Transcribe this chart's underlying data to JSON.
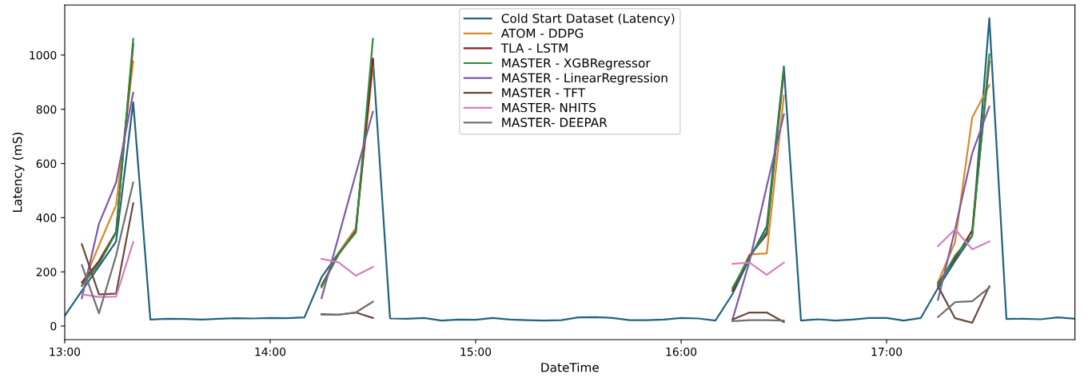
{
  "chart_data": {
    "type": "line",
    "xlabel": "DateTime",
    "ylabel": "Latency (mS)",
    "xlim": [
      13,
      17.9167
    ],
    "ylim": [
      -50,
      1185
    ],
    "xticks": [
      {
        "value": 13,
        "label": "13:00"
      },
      {
        "value": 14,
        "label": "14:00"
      },
      {
        "value": 15,
        "label": "15:00"
      },
      {
        "value": 16,
        "label": "16:00"
      },
      {
        "value": 17,
        "label": "17:00"
      }
    ],
    "yticks": [
      0,
      200,
      400,
      600,
      800,
      1000
    ],
    "grid": false,
    "legend": "top",
    "line_style": "solid",
    "marker": "none",
    "series": [
      {
        "name": "Cold Start Dataset (Latency)",
        "color": "#22637f",
        "x": [
          13,
          13.0833,
          13.1667,
          13.25,
          13.3333,
          13.4167,
          13.5,
          13.5833,
          13.6667,
          13.75,
          13.8333,
          13.9167,
          14,
          14.0833,
          14.1667,
          14.25,
          14.3333,
          14.4167,
          14.5,
          14.5833,
          14.6667,
          14.75,
          14.8333,
          14.9167,
          15,
          15.0833,
          15.1667,
          15.25,
          15.3333,
          15.4167,
          15.5,
          15.5833,
          15.6667,
          15.75,
          15.8333,
          15.9167,
          16,
          16.0833,
          16.1667,
          16.25,
          16.3333,
          16.4167,
          16.5,
          16.5833,
          16.6667,
          16.75,
          16.8333,
          16.9167,
          17,
          17.0833,
          17.1667,
          17.25,
          17.3333,
          17.4167,
          17.5,
          17.5833,
          17.6667,
          17.75,
          17.8333,
          17.9167
        ],
        "values": [
          38,
          130,
          220,
          312,
          826,
          24,
          27,
          26,
          24,
          27,
          29,
          28,
          30,
          29,
          32,
          180,
          270,
          360,
          988,
          28,
          27,
          30,
          20,
          24,
          23,
          30,
          24,
          22,
          20,
          22,
          32,
          33,
          30,
          22,
          22,
          24,
          30,
          28,
          20,
          118,
          250,
          368,
          958,
          20,
          25,
          20,
          24,
          30,
          30,
          20,
          30,
          140,
          240,
          333,
          1136,
          26,
          27,
          25,
          32,
          27
        ]
      },
      {
        "name": "ATOM - DDPG",
        "color": "#d98a2b",
        "x": [
          13.0833,
          13.1667,
          13.25,
          13.3333,
          13.4167,
          14.25,
          14.3333,
          14.4167,
          14.5,
          14.5833,
          16.25,
          16.3333,
          16.4167,
          16.5,
          16.5833,
          17.25,
          17.3333,
          17.4167,
          17.5
        ],
        "values": [
          147,
          298,
          446,
          977,
          null,
          142,
          270,
          358,
          958,
          null,
          132,
          264,
          268,
          850,
          null,
          162,
          310,
          770,
          889
        ]
      },
      {
        "name": "TLA - LSTM",
        "color": "#8b1f24",
        "x": [
          13.0833,
          13.1667,
          13.25,
          13.3333,
          13.4167,
          14.25,
          14.3333,
          14.4167,
          14.5,
          14.5833,
          16.25,
          16.3333,
          16.4167,
          16.5,
          16.5833,
          17.25,
          17.3333,
          17.4167,
          17.5
        ],
        "values": [
          161,
          240,
          348,
          1040,
          null,
          150,
          265,
          350,
          985,
          null,
          130,
          260,
          338,
          940,
          null,
          157,
          250,
          353,
          977
        ]
      },
      {
        "name": "MASTER - XGBRegressor",
        "color": "#2e8b3e",
        "x": [
          13.0833,
          13.1667,
          13.25,
          13.3333,
          13.4167,
          14.25,
          14.3333,
          14.4167,
          14.5,
          14.5833,
          16.25,
          16.3333,
          16.4167,
          16.5,
          16.5833,
          17.25,
          17.3333,
          17.4167,
          17.5
        ],
        "values": [
          150,
          230,
          345,
          1060,
          null,
          145,
          268,
          345,
          1060,
          null,
          140,
          255,
          350,
          950,
          null,
          150,
          260,
          334,
          1002
        ]
      },
      {
        "name": "MASTER - LinearRegression",
        "color": "#7e5aa6",
        "x": [
          13.0833,
          13.1667,
          13.25,
          13.3333,
          13.4167,
          14.25,
          14.3333,
          14.4167,
          14.5,
          14.5833,
          16.25,
          16.3333,
          16.4167,
          16.5,
          16.5833,
          17.25,
          17.3333,
          17.4167,
          17.5
        ],
        "values": [
          103,
          378,
          530,
          861,
          null,
          103,
          332,
          562,
          791,
          null,
          24,
          240,
          516,
          781,
          null,
          97,
          357,
          638,
          810
        ]
      },
      {
        "name": "MASTER - TFT",
        "color": "#6b4a3e",
        "x": [
          13.0833,
          13.1667,
          13.25,
          13.3333,
          13.4167,
          14.25,
          14.3333,
          14.4167,
          14.5,
          14.5833,
          16.25,
          16.3333,
          16.4167,
          16.5,
          16.5833,
          17.25,
          17.3333,
          17.4167,
          17.5
        ],
        "values": [
          302,
          117,
          120,
          453,
          null,
          44,
          42,
          50,
          30,
          null,
          24,
          50,
          50,
          15,
          null,
          147,
          29,
          12,
          147
        ]
      },
      {
        "name": "MASTER- NHITS",
        "color": "#d47fbf",
        "x": [
          13.0833,
          13.1667,
          13.25,
          13.3333,
          13.4167,
          14.25,
          14.3333,
          14.4167,
          14.5,
          14.5833,
          16.25,
          16.3333,
          16.4167,
          16.5,
          16.5833,
          17.25,
          17.3333,
          17.4167,
          17.5
        ],
        "values": [
          117,
          107,
          109,
          310,
          null,
          248,
          235,
          186,
          218,
          null,
          230,
          234,
          189,
          234,
          null,
          295,
          357,
          283,
          312
        ]
      },
      {
        "name": "MASTER- DEEPAR",
        "color": "#707070",
        "x": [
          13.0833,
          13.1667,
          13.25,
          13.3333,
          13.4167,
          14.25,
          14.3333,
          14.4167,
          14.5,
          14.5833,
          16.25,
          16.3333,
          16.4167,
          16.5,
          16.5833,
          17.25,
          17.3333,
          17.4167,
          17.5
        ],
        "values": [
          225,
          47,
          260,
          530,
          null,
          42,
          42,
          50,
          90,
          null,
          18,
          22,
          22,
          20,
          null,
          33,
          88,
          92,
          142
        ]
      }
    ]
  }
}
